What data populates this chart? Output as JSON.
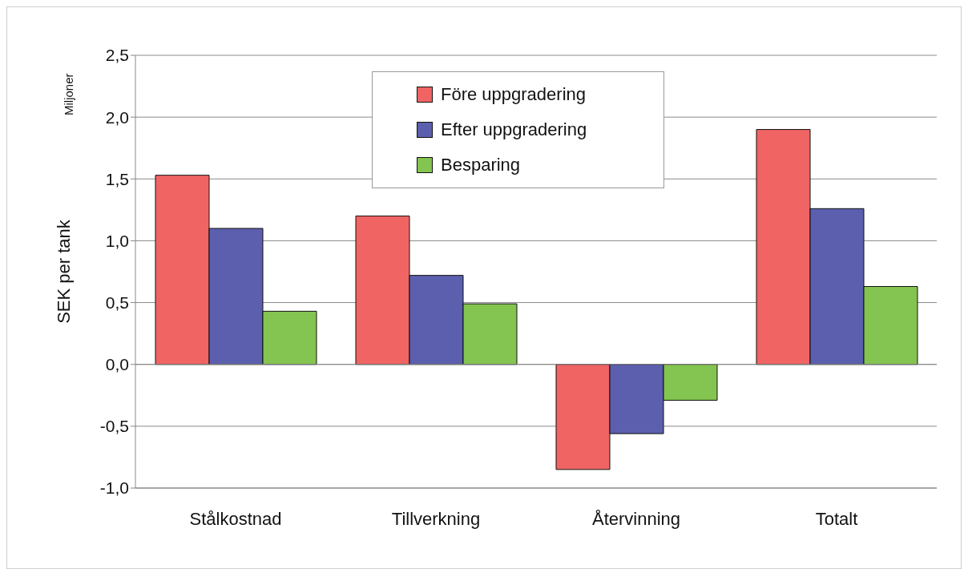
{
  "chart_data": {
    "type": "bar",
    "ylabel": "SEK per tank",
    "annotations": [
      "Miljoner"
    ],
    "categories": [
      "Stålkostnad",
      "Tillverkning",
      "Återvinning",
      "Totalt"
    ],
    "series": [
      {
        "name": "Före uppgradering",
        "color": "#f06464",
        "values": [
          1.53,
          1.2,
          -0.85,
          1.9
        ]
      },
      {
        "name": "Efter uppgradering",
        "color": "#5b5fad",
        "values": [
          1.1,
          0.72,
          -0.56,
          1.26
        ]
      },
      {
        "name": "Besparing",
        "color": "#84c450",
        "values": [
          0.43,
          0.49,
          -0.29,
          0.63
        ]
      }
    ],
    "ylim": [
      -1,
      2.5
    ],
    "yticks": [
      {
        "value": -1,
        "label": "-1,0"
      },
      {
        "value": -0.5,
        "label": "-0,5"
      },
      {
        "value": 0,
        "label": "0,0"
      },
      {
        "value": 0.5,
        "label": "0,5"
      },
      {
        "value": 1,
        "label": "1,0"
      },
      {
        "value": 1.5,
        "label": "1,5"
      },
      {
        "value": 2,
        "label": "2,0"
      },
      {
        "value": 2.5,
        "label": "2,5"
      }
    ],
    "grid": "y",
    "legend": "top"
  }
}
